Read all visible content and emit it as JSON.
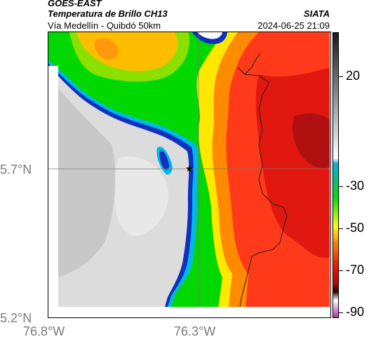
{
  "header": {
    "satellite": "GOES-EAST",
    "product": "Temperatura de Brillo CH13",
    "organization": "SIATA",
    "route": "Vía Medellín - Quibdó 50km",
    "timestamp": "2024-06-25 21:09"
  },
  "map": {
    "lat_ticks": [
      "5.7°N",
      "5.2°N"
    ],
    "lon_ticks": [
      "76.8°W",
      "76.3°W"
    ],
    "marker_icon": "star-icon",
    "marker": {
      "lat": 5.7,
      "lon": -76.32
    }
  },
  "colorbar": {
    "ticks": [
      "20",
      "-30",
      "-50",
      "-70",
      "-90"
    ],
    "colors": [
      "#1a1a1a",
      "#ffffff",
      "#00b0e0",
      "#00e000",
      "#ffff00",
      "#ff8000",
      "#ff1000",
      "#c00000",
      "#300000",
      "#b030b0"
    ]
  }
}
